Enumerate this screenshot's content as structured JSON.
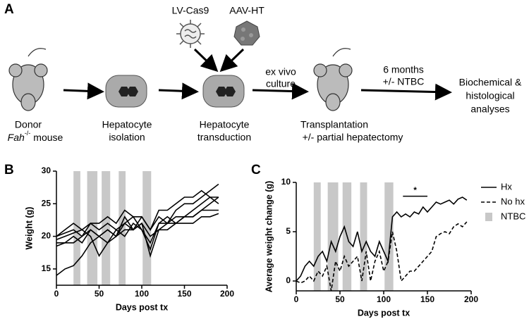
{
  "panel_a": {
    "label": "A",
    "lv": "LV-Cas9",
    "aav": "AAV-HT",
    "donor": "Donor",
    "fah": "Fah",
    "fah_sup": "-/-",
    "mouse": "mouse",
    "iso1": "Hepatocyte",
    "iso2": "isolation",
    "trans1": "Hepatocyte",
    "trans2": "transduction",
    "exvivo1": "ex vivo",
    "exvivo2": "culture",
    "tx1": "Transplantation",
    "tx2": "+/- partial hepatectomy",
    "months1": "6 months",
    "months2": "+/- NTBC",
    "an1": "Biochemical &",
    "an2": "histological",
    "an3": "analyses"
  },
  "chart_data": [
    {
      "type": "line",
      "panel": "B",
      "xlabel": "Days post tx",
      "ylabel": "Weight (g)",
      "x": [
        0,
        10,
        20,
        30,
        40,
        50,
        60,
        70,
        80,
        90,
        100,
        110,
        120,
        130,
        140,
        150,
        160,
        170,
        180,
        190
      ],
      "xlim": [
        0,
        200
      ],
      "xticks": [
        0,
        50,
        100,
        150,
        200
      ],
      "ylim": [
        12.5,
        30
      ],
      "yticks": [
        15,
        20,
        25,
        30
      ],
      "shaded_regions": [
        [
          20,
          28
        ],
        [
          36,
          48
        ],
        [
          53,
          63
        ],
        [
          73,
          81
        ],
        [
          101,
          111
        ]
      ],
      "shade_color": "#c8c8c8",
      "series": [
        {
          "color": "#000000",
          "values": [
            14,
            15,
            15.5,
            17,
            19,
            20,
            21,
            20,
            22,
            21,
            23,
            21,
            23,
            22,
            24,
            25,
            25,
            26,
            27,
            28
          ]
        },
        {
          "color": "#000000",
          "values": [
            19,
            19,
            20,
            19,
            21,
            20,
            19,
            21,
            20,
            22,
            21,
            18,
            22,
            22,
            22,
            23,
            23,
            24,
            25,
            26
          ]
        },
        {
          "color": "#000000",
          "values": [
            19.5,
            20,
            20.5,
            21,
            20,
            17,
            19,
            20,
            21,
            21,
            22,
            20,
            21,
            22,
            23,
            23,
            24,
            25,
            26,
            25
          ]
        },
        {
          "color": "#000000",
          "values": [
            20,
            20.5,
            21,
            20,
            22,
            21,
            22,
            21,
            22,
            23,
            21,
            19,
            22,
            23,
            22,
            23,
            23,
            24,
            24,
            24
          ]
        },
        {
          "color": "#000000",
          "values": [
            18.5,
            19,
            19,
            20,
            21,
            20,
            21,
            20,
            23,
            21,
            22,
            17,
            21,
            21,
            22,
            22,
            22,
            23,
            23,
            23.5
          ]
        },
        {
          "color": "#000000",
          "values": [
            20,
            21,
            22,
            21,
            22,
            22,
            23,
            22,
            24,
            23,
            23,
            21,
            24,
            24,
            25,
            26,
            26,
            27,
            26,
            26
          ]
        }
      ]
    },
    {
      "type": "line",
      "panel": "C",
      "xlabel": "Days post tx",
      "ylabel": "Average weight change (g)",
      "x": [
        0,
        5,
        10,
        15,
        20,
        25,
        30,
        35,
        40,
        45,
        50,
        55,
        60,
        65,
        70,
        75,
        80,
        85,
        90,
        95,
        100,
        105,
        110,
        115,
        120,
        125,
        130,
        135,
        140,
        145,
        150,
        155,
        160,
        165,
        170,
        175,
        180,
        185,
        190,
        195
      ],
      "xlim": [
        0,
        200
      ],
      "xticks": [
        0,
        50,
        100,
        150,
        200
      ],
      "ylim": [
        -1,
        10
      ],
      "yticks": [
        0,
        5,
        10
      ],
      "shaded_regions": [
        [
          20,
          28
        ],
        [
          36,
          48
        ],
        [
          53,
          63
        ],
        [
          73,
          81
        ],
        [
          101,
          111
        ]
      ],
      "shade_color": "#c8c8c8",
      "shade_name": "NTBC",
      "annotation": {
        "text": "*",
        "x": [
          122,
          150
        ],
        "y": 8.6
      },
      "series": [
        {
          "name": "Hx",
          "color": "#000000",
          "style": "solid",
          "values": [
            0,
            0.5,
            1.5,
            2,
            1.5,
            2.5,
            3,
            2,
            4,
            3,
            4.5,
            5.5,
            4,
            3.5,
            5,
            3,
            4,
            3,
            2.5,
            4,
            3,
            2,
            6.5,
            7,
            6.5,
            6.8,
            6.5,
            7,
            6.8,
            7.5,
            7,
            7.5,
            8,
            7.8,
            8,
            8.2,
            7.8,
            8.3,
            8.5,
            8.2
          ]
        },
        {
          "name": "No hx",
          "color": "#000000",
          "style": "dashed",
          "values": [
            0,
            -0.2,
            0,
            0.5,
            0,
            1,
            0.5,
            1.5,
            -1,
            2,
            1,
            2.5,
            1.5,
            2,
            2.5,
            0,
            3,
            0,
            2,
            3,
            1,
            2,
            5,
            3,
            0,
            0.5,
            1,
            1,
            1.5,
            2,
            2.5,
            3,
            4.5,
            4.8,
            5,
            4.8,
            5.5,
            5.8,
            5.5,
            6
          ]
        }
      ]
    }
  ]
}
